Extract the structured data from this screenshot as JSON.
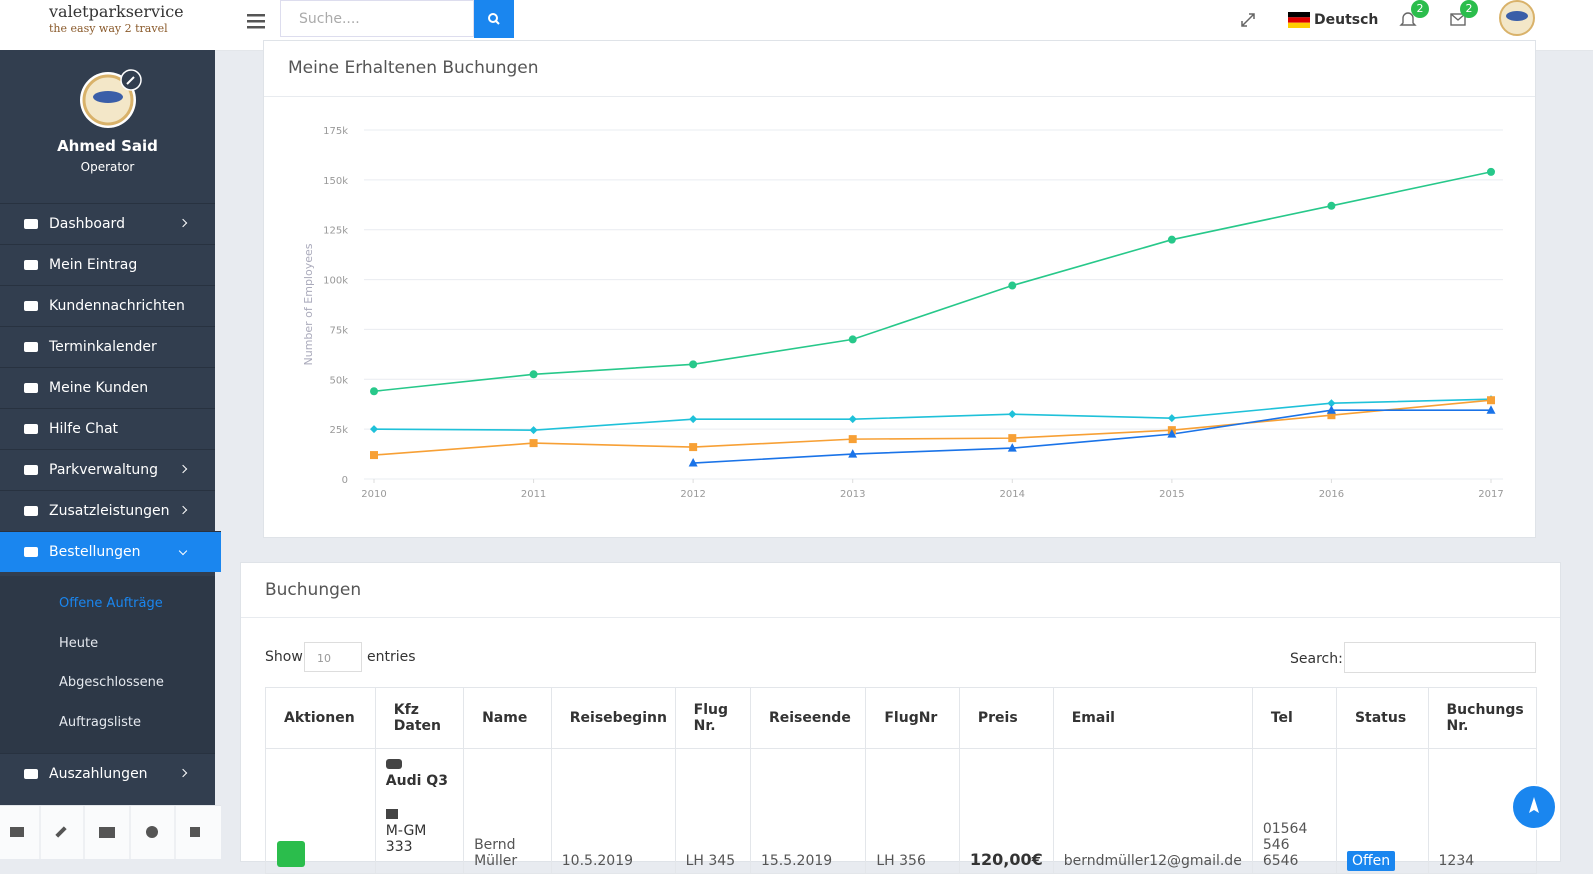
{
  "header": {
    "logo": "valetparkservice",
    "tagline": "the easy way 2 travel",
    "search_placeholder": "Suche....",
    "language": "Deutsch",
    "notifications": "2",
    "messages": "2"
  },
  "sidebar": {
    "user_name": "Ahmed Said",
    "user_role": "Operator",
    "menu": [
      "Dashboard",
      "Mein Eintrag",
      "Kundennachrichten",
      "Terminkalender",
      "Meine Kunden",
      "Hilfe Chat",
      "Parkverwaltung",
      "Zusatzleistungen",
      "Bestellungen"
    ],
    "submenu": [
      "Offene Aufträge",
      "Heute",
      "Abgeschlossene",
      "Auftragsliste"
    ],
    "menu_after": [
      "Auszahlungen"
    ]
  },
  "chart_data": {
    "type": "line",
    "title": "Meine Erhaltenen Buchungen",
    "y_label": "Number of Employees",
    "x": [
      2010,
      2011,
      2012,
      2013,
      2014,
      2015,
      2016,
      2017
    ],
    "xlim": [
      2010,
      2017
    ],
    "xticks": [
      2010,
      2011,
      2012,
      2013,
      2014,
      2015,
      2016,
      2017
    ],
    "ylim": [
      0,
      175000
    ],
    "yticks": [
      0,
      {
        "value": 25000,
        "label": "25k"
      },
      {
        "value": 50000,
        "label": "50k"
      },
      {
        "value": 75000,
        "label": "75k"
      },
      {
        "value": 100000,
        "label": "100k"
      },
      {
        "value": 125000,
        "label": "125k"
      },
      {
        "value": 150000,
        "label": "150k"
      },
      {
        "value": 175000,
        "label": "175k"
      }
    ],
    "grid": true,
    "series": [
      {
        "color": "#27c88a",
        "marker": "circle",
        "values": [
          44000,
          52500,
          57500,
          70000,
          97000,
          120000,
          137000,
          154000
        ]
      },
      {
        "color": "#1fc1d9",
        "marker": "diamond",
        "values": [
          25000,
          24500,
          30000,
          30000,
          32500,
          30500,
          38000,
          40000
        ]
      },
      {
        "color": "#f7a035",
        "marker": "square",
        "values": [
          12000,
          18000,
          16000,
          20000,
          20500,
          24500,
          32000,
          39500
        ]
      },
      {
        "color": "#1a73e8",
        "marker": "triangle",
        "values": [
          null,
          null,
          8000,
          12500,
          15500,
          22500,
          34500,
          34500
        ]
      }
    ]
  },
  "table": {
    "title": "Buchungen",
    "show_label": "Show",
    "page_size": "10",
    "entries_label": "entries",
    "search_label": "Search:",
    "columns": [
      "Aktionen",
      "Kfz Daten",
      "Name",
      "Reisebeginn",
      "Flug Nr.",
      "Reiseende",
      "FlugNr",
      "Preis",
      "Email",
      "Tel",
      "Status",
      "Buchungs Nr."
    ],
    "rows": [
      {
        "car": "Audi Q3",
        "plate": "M-GM 333",
        "name": "Bernd Müller",
        "start": "10.5.2019",
        "flight_out": "LH 345",
        "end": "15.5.2019",
        "flight_back": "LH 356",
        "price": "120,00€",
        "email": "berndmüller12@gmail.de",
        "tel": "01564 546 6546",
        "status": "Offen",
        "booking_no": "1234"
      }
    ]
  }
}
